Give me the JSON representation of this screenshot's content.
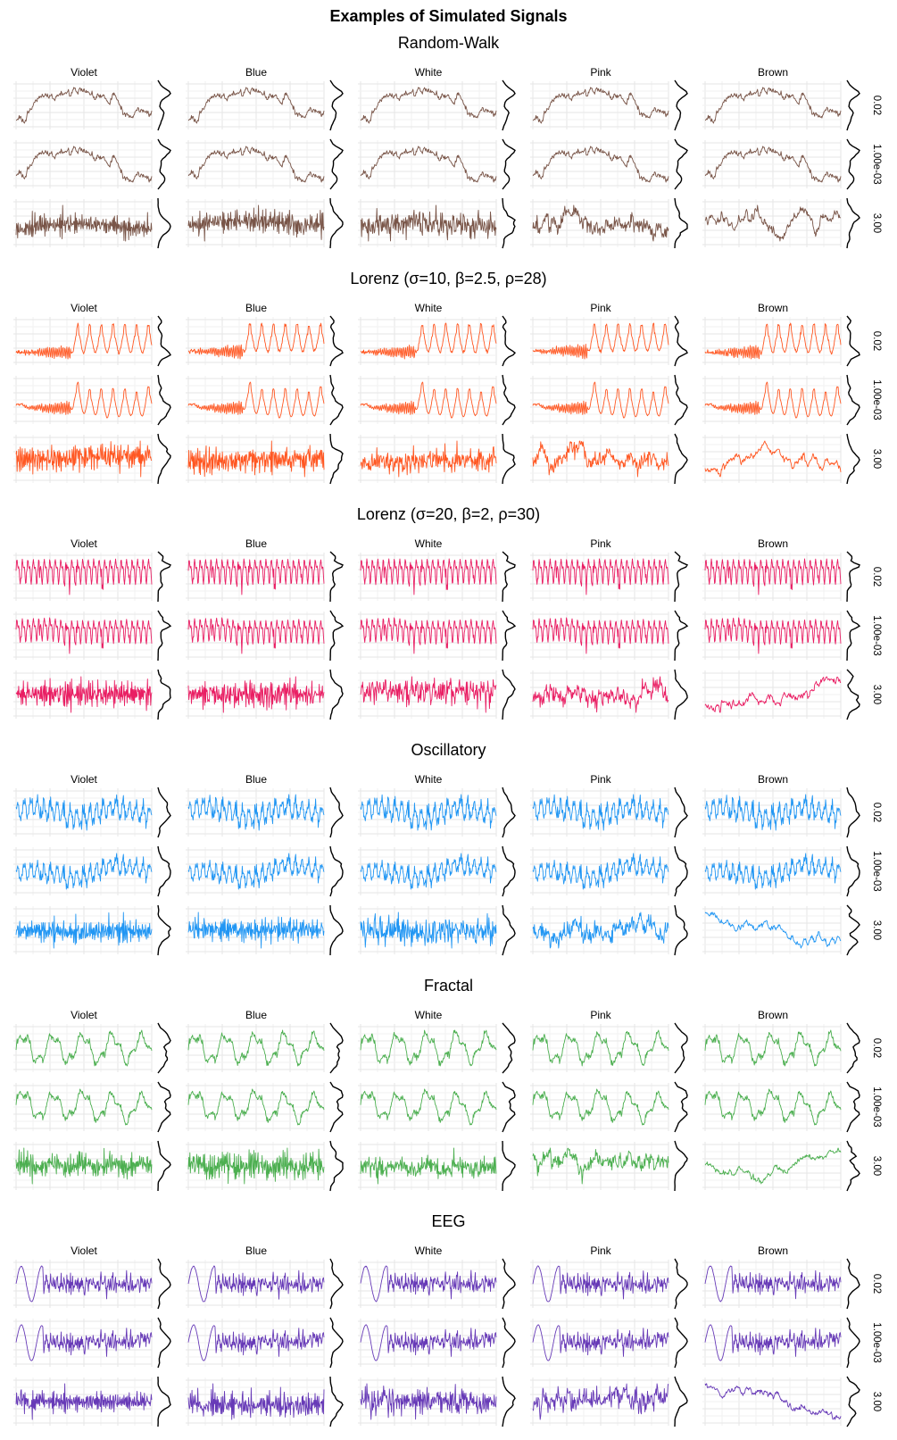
{
  "title": "Examples of Simulated Signals",
  "noise_types": [
    "Violet",
    "Blue",
    "White",
    "Pink",
    "Brown"
  ],
  "noise_levels": [
    "0.02",
    "1.00e-03",
    "3.00"
  ],
  "groups": [
    {
      "name": "Random-Walk",
      "color": "#795548"
    },
    {
      "name": "Lorenz (σ=10, β=2.5, ρ=28)",
      "color": "#FF5722"
    },
    {
      "name": "Lorenz (σ=20, β=2, ρ=30)",
      "color": "#E91E63"
    },
    {
      "name": "Oscillatory",
      "color": "#2196F3"
    },
    {
      "name": "Fractal",
      "color": "#4CAF50"
    },
    {
      "name": "EEG",
      "color": "#673AB7"
    }
  ],
  "chart_data": {
    "type": "line",
    "facet_rows": [
      "Random-Walk",
      "Lorenz (σ=10, β=2.5, ρ=28)",
      "Lorenz (σ=20, β=2, ρ=30)",
      "Oscillatory",
      "Fractal",
      "EEG"
    ],
    "facet_cols": [
      "Violet",
      "Blue",
      "White",
      "Pink",
      "Brown"
    ],
    "noise_intensity": [
      "0.02",
      "1.00e-03",
      "3.00"
    ],
    "grid": true,
    "marginal": "density"
  }
}
